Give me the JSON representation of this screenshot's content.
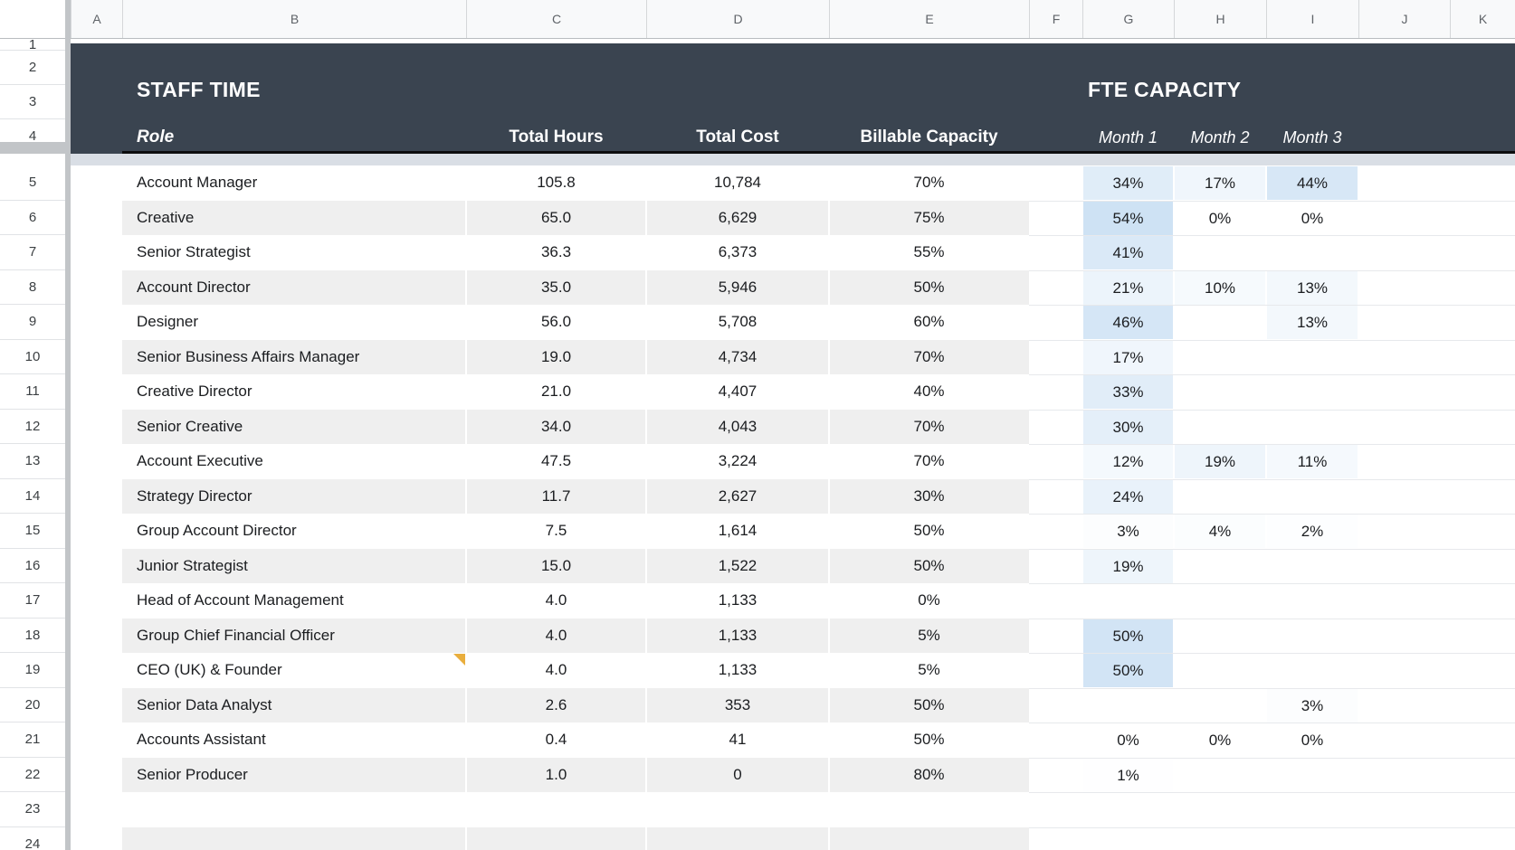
{
  "sheet": {
    "column_letters": [
      "A",
      "B",
      "C",
      "D",
      "E",
      "F",
      "G",
      "H",
      "I",
      "J",
      "K"
    ],
    "row_numbers": [
      1,
      2,
      3,
      4,
      5,
      6,
      7,
      8,
      9,
      10,
      11,
      12,
      13,
      14,
      15,
      16,
      17,
      18,
      19,
      20,
      21,
      22,
      23,
      24
    ]
  },
  "table": {
    "staff_time_title": "STAFF TIME",
    "fte_capacity_title": "FTE CAPACITY",
    "columns": {
      "role": "Role",
      "total_hours": "Total Hours",
      "total_cost": "Total Cost",
      "billable_capacity": "Billable Capacity",
      "months": [
        "Month 1",
        "Month 2",
        "Month 3"
      ]
    },
    "rows": [
      {
        "row": 5,
        "role": "Account Manager",
        "total_hours": "105.8",
        "total_cost": "10,784",
        "billable_capacity": "70%",
        "month1": "34%",
        "month2": "17%",
        "month3": "44%",
        "note": false
      },
      {
        "row": 6,
        "role": "Creative",
        "total_hours": "65.0",
        "total_cost": "6,629",
        "billable_capacity": "75%",
        "month1": "54%",
        "month2": "0%",
        "month3": "0%",
        "note": false
      },
      {
        "row": 7,
        "role": "Senior Strategist",
        "total_hours": "36.3",
        "total_cost": "6,373",
        "billable_capacity": "55%",
        "month1": "41%",
        "month2": "",
        "month3": "",
        "note": false
      },
      {
        "row": 8,
        "role": "Account Director",
        "total_hours": "35.0",
        "total_cost": "5,946",
        "billable_capacity": "50%",
        "month1": "21%",
        "month2": "10%",
        "month3": "13%",
        "note": false
      },
      {
        "row": 9,
        "role": "Designer",
        "total_hours": "56.0",
        "total_cost": "5,708",
        "billable_capacity": "60%",
        "month1": "46%",
        "month2": "",
        "month3": "13%",
        "note": false
      },
      {
        "row": 10,
        "role": "Senior Business Affairs Manager",
        "total_hours": "19.0",
        "total_cost": "4,734",
        "billable_capacity": "70%",
        "month1": "17%",
        "month2": "",
        "month3": "",
        "note": false
      },
      {
        "row": 11,
        "role": "Creative Director",
        "total_hours": "21.0",
        "total_cost": "4,407",
        "billable_capacity": "40%",
        "month1": "33%",
        "month2": "",
        "month3": "",
        "note": false
      },
      {
        "row": 12,
        "role": "Senior Creative",
        "total_hours": "34.0",
        "total_cost": "4,043",
        "billable_capacity": "70%",
        "month1": "30%",
        "month2": "",
        "month3": "",
        "note": false
      },
      {
        "row": 13,
        "role": "Account Executive",
        "total_hours": "47.5",
        "total_cost": "3,224",
        "billable_capacity": "70%",
        "month1": "12%",
        "month2": "19%",
        "month3": "11%",
        "note": false
      },
      {
        "row": 14,
        "role": "Strategy Director",
        "total_hours": "11.7",
        "total_cost": "2,627",
        "billable_capacity": "30%",
        "month1": "24%",
        "month2": "",
        "month3": "",
        "note": false
      },
      {
        "row": 15,
        "role": "Group Account Director",
        "total_hours": "7.5",
        "total_cost": "1,614",
        "billable_capacity": "50%",
        "month1": "3%",
        "month2": "4%",
        "month3": "2%",
        "note": false
      },
      {
        "row": 16,
        "role": "Junior Strategist",
        "total_hours": "15.0",
        "total_cost": "1,522",
        "billable_capacity": "50%",
        "month1": "19%",
        "month2": "",
        "month3": "",
        "note": false
      },
      {
        "row": 17,
        "role": "Head of Account Management",
        "total_hours": "4.0",
        "total_cost": "1,133",
        "billable_capacity": "0%",
        "month1": "",
        "month2": "",
        "month3": "",
        "note": false
      },
      {
        "row": 18,
        "role": "Group Chief Financial Officer",
        "total_hours": "4.0",
        "total_cost": "1,133",
        "billable_capacity": "5%",
        "month1": "50%",
        "month2": "",
        "month3": "",
        "note": false
      },
      {
        "row": 19,
        "role": "CEO (UK) & Founder",
        "total_hours": "4.0",
        "total_cost": "1,133",
        "billable_capacity": "5%",
        "month1": "50%",
        "month2": "",
        "month3": "",
        "note": true
      },
      {
        "row": 20,
        "role": "Senior Data Analyst",
        "total_hours": "2.6",
        "total_cost": "353",
        "billable_capacity": "50%",
        "month1": "",
        "month2": "",
        "month3": "3%",
        "note": false
      },
      {
        "row": 21,
        "role": "Accounts Assistant",
        "total_hours": "0.4",
        "total_cost": "41",
        "billable_capacity": "50%",
        "month1": "0%",
        "month2": "0%",
        "month3": "0%",
        "note": false
      },
      {
        "row": 22,
        "role": "Senior Producer",
        "total_hours": "1.0",
        "total_cost": "0",
        "billable_capacity": "80%",
        "month1": "1%",
        "month2": "",
        "month3": "",
        "note": false
      },
      {
        "row": 23,
        "role": "",
        "total_hours": "",
        "total_cost": "",
        "billable_capacity": "",
        "month1": "",
        "month2": "",
        "month3": "",
        "note": false
      },
      {
        "row": 24,
        "role": "",
        "total_hours": "",
        "total_cost": "",
        "billable_capacity": "",
        "month1": "",
        "month2": "",
        "month3": "",
        "note": false
      }
    ]
  },
  "colors": {
    "header_bg": "#3a4450",
    "band_stripe": "#efefef",
    "capacity_scale_max": "#cee2f4",
    "capacity_scale_min": "#ffffff",
    "note_indicator": "#e9ae3d",
    "cell_text": "#1b1d20",
    "header_text": "#ffffff",
    "gridline": "#e7e9ec"
  }
}
